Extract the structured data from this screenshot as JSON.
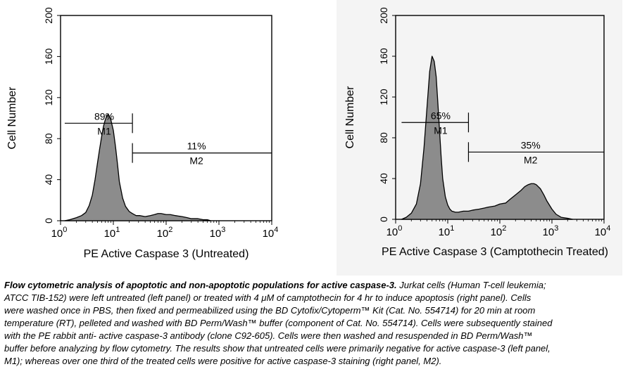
{
  "chart_data": [
    {
      "type": "area",
      "xlabel": "PE Active Caspase 3 (Untreated)",
      "ylabel": "Cell Number",
      "x_scale": "log",
      "xlim": [
        1,
        10000
      ],
      "ylim": [
        0,
        200
      ],
      "x_ticks": [
        {
          "value": 1,
          "base": "10",
          "exp": "0"
        },
        {
          "value": 10,
          "base": "10",
          "exp": "1"
        },
        {
          "value": 100,
          "base": "10",
          "exp": "2"
        },
        {
          "value": 1000,
          "base": "10",
          "exp": "3"
        },
        {
          "value": 10000,
          "base": "10",
          "exp": "4"
        }
      ],
      "y_ticks": [
        "0",
        "40",
        "80",
        "120",
        "160",
        "200"
      ],
      "grid": false,
      "fill_color": "#8c8c8c",
      "series": [
        {
          "x": [
            1.2,
            1.5,
            2,
            2.5,
            3,
            3.5,
            4,
            4.5,
            5,
            5.5,
            6,
            6.5,
            7,
            7.5,
            8,
            8.5,
            9,
            10,
            11,
            12,
            13,
            15,
            17,
            20,
            23,
            27,
            32,
            40,
            50,
            60,
            70,
            80,
            100,
            120,
            150,
            200,
            250,
            300,
            400,
            500,
            600,
            700
          ],
          "y": [
            0,
            1,
            3,
            5,
            8,
            15,
            25,
            40,
            56,
            70,
            82,
            92,
            98,
            102,
            104,
            101,
            98,
            88,
            72,
            55,
            38,
            22,
            14,
            9,
            7,
            5,
            5,
            4,
            5,
            6,
            7,
            7,
            6,
            6,
            5,
            4,
            3,
            2,
            2,
            1,
            1,
            0
          ]
        }
      ],
      "gates": [
        {
          "label": "M1",
          "percent": "89%",
          "x_start": 1.2,
          "x_end": 23,
          "y": 95
        },
        {
          "label": "M2",
          "percent": "11%",
          "x_start": 23,
          "x_end": 10000,
          "y": 66
        }
      ]
    },
    {
      "type": "area",
      "xlabel": "PE Active Caspase 3 (Camptothecin Treated)",
      "ylabel": "Cell Number",
      "x_scale": "log",
      "xlim": [
        1,
        10000
      ],
      "ylim": [
        0,
        200
      ],
      "x_ticks": [
        {
          "value": 1,
          "base": "10",
          "exp": "0"
        },
        {
          "value": 10,
          "base": "10",
          "exp": "1"
        },
        {
          "value": 100,
          "base": "10",
          "exp": "2"
        },
        {
          "value": 1000,
          "base": "10",
          "exp": "3"
        },
        {
          "value": 10000,
          "base": "10",
          "exp": "4"
        }
      ],
      "y_ticks": [
        "0",
        "40",
        "80",
        "120",
        "160",
        "200"
      ],
      "grid": false,
      "fill_color": "#8c8c8c",
      "series": [
        {
          "x": [
            1.3,
            1.6,
            2,
            2.5,
            3,
            3.5,
            4,
            4.5,
            5,
            5.5,
            6,
            6.5,
            7,
            7.5,
            8,
            9,
            10,
            11,
            12,
            14,
            16,
            20,
            25,
            30,
            40,
            50,
            60,
            80,
            100,
            130,
            160,
            200,
            250,
            300,
            350,
            400,
            450,
            500,
            600,
            700,
            800,
            1000,
            1200,
            1500,
            2000,
            2500
          ],
          "y": [
            0,
            2,
            6,
            15,
            35,
            70,
            110,
            145,
            160,
            155,
            140,
            112,
            85,
            60,
            40,
            22,
            14,
            10,
            8,
            7,
            7,
            8,
            8,
            9,
            10,
            11,
            12,
            13,
            15,
            16,
            20,
            24,
            28,
            32,
            34,
            35,
            35,
            34,
            30,
            24,
            18,
            10,
            5,
            2,
            1,
            0
          ]
        }
      ],
      "gates": [
        {
          "label": "M1",
          "percent": "65%",
          "x_start": 1.3,
          "x_end": 25,
          "y": 95
        },
        {
          "label": "M2",
          "percent": "35%",
          "x_start": 25,
          "x_end": 10000,
          "y": 66
        }
      ]
    }
  ],
  "caption": {
    "bold": "Flow cytometric analysis of apoptotic and non-apoptotic populations for active caspase-3.",
    "text": " Jurkat cells (Human T-cell leukemia; ATCC TIB-152) were left untreated (left panel) or treated with 4 μM of camptothecin for 4 hr to induce apoptosis (right panel). Cells were washed once in PBS, then fixed and permeabilized using the BD Cytofix/Cytoperm™ Kit (Cat. No. 554714) for 20 min at room temperature (RT), pelleted and washed with BD Perm/Wash™ buffer (component of Cat. No. 554714). Cells were subsequently stained with the PE rabbit anti- active caspase-3 antibody (clone C92-605). Cells were then washed and resuspended in BD Perm/Wash™ buffer before analyzing by flow cytometry. The results show that untreated cells were primarily negative for active caspase-3 (left panel, M1); whereas over one third of the treated cells were positive for active caspase-3 staining (right panel, M2)."
  }
}
